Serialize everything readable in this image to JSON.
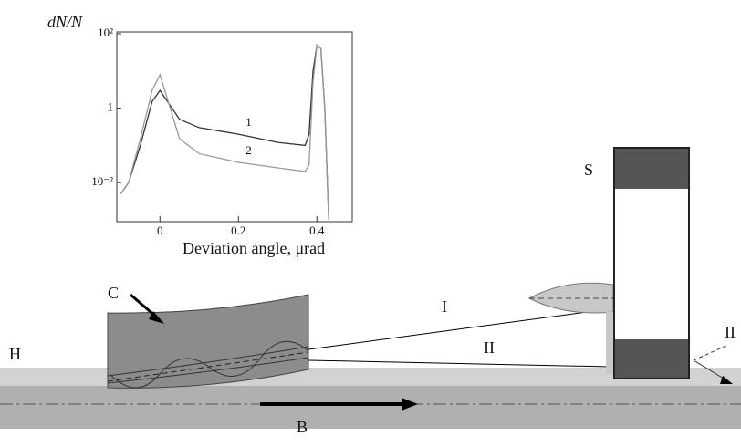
{
  "inset": {
    "type": "line",
    "y_label": "dN/N",
    "x_label": "Deviation angle, μrad",
    "xlim": [
      -0.11,
      0.49
    ],
    "xticks": [
      0,
      0.2,
      0.4
    ],
    "ylim": [
      0.001,
      100
    ],
    "log_y": true,
    "yticks": [
      {
        "value": 100,
        "label": "10²"
      },
      1,
      {
        "value": 0.01,
        "label": "10⁻²"
      }
    ],
    "x": [
      -0.1,
      -0.08,
      -0.05,
      -0.02,
      0,
      0.05,
      0.1,
      0.2,
      0.3,
      0.37,
      0.38,
      0.39,
      0.4,
      0.41,
      0.42,
      0.43
    ],
    "series": [
      {
        "name": "1",
        "color": "#333333",
        "values": [
          0.005,
          0.01,
          0.1,
          1.5,
          3,
          0.5,
          0.3,
          0.2,
          0.12,
          0.1,
          0.2,
          10,
          50,
          40,
          1,
          0.001
        ]
      },
      {
        "name": "2",
        "color": "#999999",
        "values": [
          0.005,
          0.01,
          0.15,
          3,
          8,
          0.15,
          0.06,
          0.035,
          0.025,
          0.02,
          0.03,
          5,
          50,
          40,
          1,
          0.001
        ]
      }
    ]
  },
  "labels": {
    "screen": "S",
    "crystal": "C",
    "holder": "H",
    "beam": "B",
    "beam_i": "I",
    "beam_ii": "II",
    "beam_ii_out": "II"
  }
}
